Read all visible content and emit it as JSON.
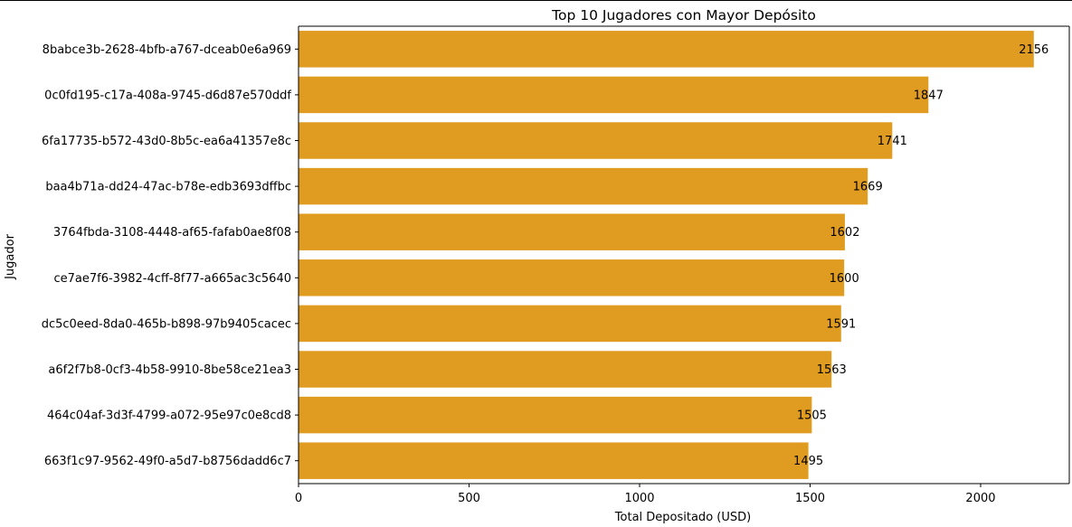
{
  "chart_data": {
    "type": "bar",
    "orientation": "horizontal",
    "title": "Top 10 Jugadores con Mayor Depósito",
    "xlabel": "Total Depositado (USD)",
    "ylabel": "Jugador",
    "xlim": [
      0,
      2260
    ],
    "xticks": [
      0,
      500,
      1000,
      1500,
      2000
    ],
    "grid": false,
    "bar_color": "#e09c20",
    "categories": [
      "8babce3b-2628-4bfb-a767-dceab0e6a969",
      "0c0fd195-c17a-408a-9745-d6d87e570ddf",
      "6fa17735-b572-43d0-8b5c-ea6a41357e8c",
      "baa4b71a-dd24-47ac-b78e-edb3693dffbc",
      "3764fbda-3108-4448-af65-fafab0ae8f08",
      "ce7ae7f6-3982-4cff-8f77-a665ac3c5640",
      "dc5c0eed-8da0-465b-b898-97b9405cacec",
      "a6f2f7b8-0cf3-4b58-9910-8be58ce21ea3",
      "464c04af-3d3f-4799-a072-95e97c0e8cd8",
      "663f1c97-9562-49f0-a5d7-b8756dadd6c7"
    ],
    "values": [
      2156,
      1847,
      1741,
      1669,
      1602,
      1600,
      1591,
      1563,
      1505,
      1495
    ],
    "data_labels": [
      "2156",
      "1847",
      "1741",
      "1669",
      "1602",
      "1600",
      "1591",
      "1563",
      "1505",
      "1495"
    ]
  }
}
